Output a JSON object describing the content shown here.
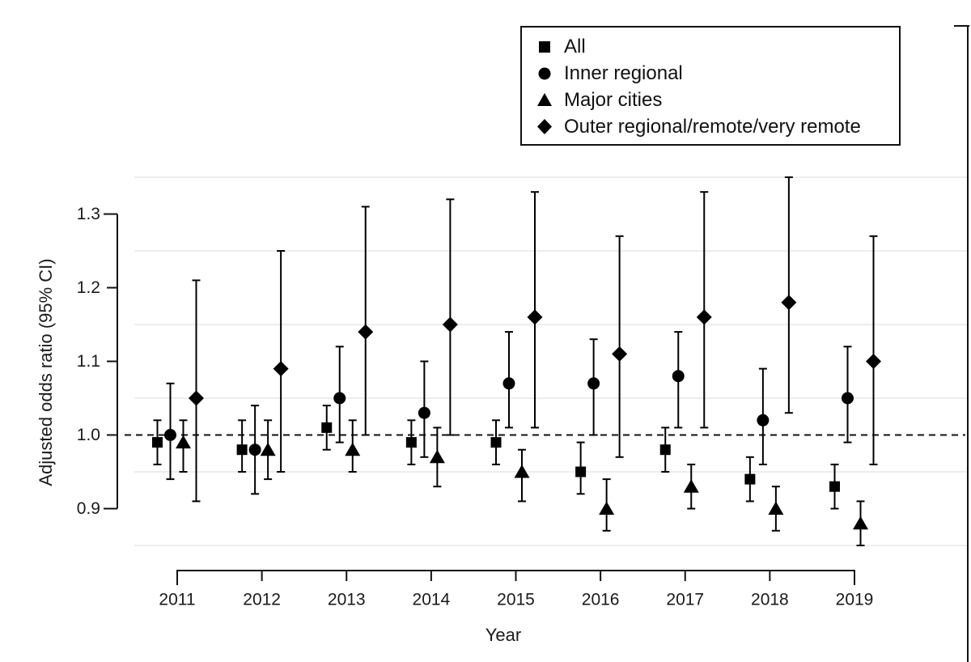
{
  "figure": {
    "y_axis_title": "Adjusted odds ratio (95% CI)",
    "x_axis_title": "Year"
  },
  "chart_data": {
    "type": "scatter",
    "subtype": "point-estimates-with-95CI-error-bars",
    "title": "",
    "xlabel": "Year",
    "ylabel": "Adjusted odds ratio (95% CI)",
    "categories": [
      "2011",
      "2012",
      "2013",
      "2014",
      "2015",
      "2016",
      "2017",
      "2018",
      "2019"
    ],
    "ylim": [
      0.9,
      1.3
    ],
    "ytick_labels": [
      "0.9",
      "1.0",
      "1.1",
      "1.2",
      "1.3"
    ],
    "yticks": [
      0.9,
      1.0,
      1.1,
      1.2,
      1.3
    ],
    "gridlines_y": [
      0.85,
      0.95,
      1.05,
      1.15,
      1.25,
      1.35
    ],
    "grid": "faint-horizontal",
    "reference_line_y": 1.0,
    "reference_line_style": "dashed",
    "legend_position": "top-right",
    "series": [
      {
        "name": "All",
        "marker": "square",
        "values": [
          0.99,
          0.98,
          1.01,
          0.99,
          0.99,
          0.95,
          0.98,
          0.94,
          0.93
        ],
        "ci_low": [
          0.96,
          0.95,
          0.98,
          0.96,
          0.96,
          0.92,
          0.95,
          0.91,
          0.9
        ],
        "ci_high": [
          1.02,
          1.02,
          1.04,
          1.02,
          1.02,
          0.99,
          1.01,
          0.97,
          0.96
        ]
      },
      {
        "name": "Inner regional",
        "marker": "circle",
        "values": [
          1.0,
          0.98,
          1.05,
          1.03,
          1.07,
          1.07,
          1.08,
          1.02,
          1.05
        ],
        "ci_low": [
          0.94,
          0.92,
          0.99,
          0.97,
          1.01,
          1.0,
          1.01,
          0.96,
          0.99
        ],
        "ci_high": [
          1.07,
          1.04,
          1.12,
          1.1,
          1.14,
          1.13,
          1.14,
          1.09,
          1.12
        ]
      },
      {
        "name": "Major cities",
        "marker": "triangle",
        "values": [
          0.99,
          0.98,
          0.98,
          0.97,
          0.95,
          0.9,
          0.93,
          0.9,
          0.88
        ],
        "ci_low": [
          0.95,
          0.94,
          0.95,
          0.93,
          0.91,
          0.87,
          0.9,
          0.87,
          0.85
        ],
        "ci_high": [
          1.02,
          1.02,
          1.02,
          1.01,
          0.98,
          0.94,
          0.96,
          0.93,
          0.91
        ]
      },
      {
        "name": "Outer regional/remote/very remote",
        "marker": "diamond",
        "values": [
          1.05,
          1.09,
          1.14,
          1.15,
          1.16,
          1.11,
          1.16,
          1.18,
          1.1
        ],
        "ci_low": [
          0.91,
          0.95,
          1.0,
          1.0,
          1.01,
          0.97,
          1.01,
          1.03,
          0.96
        ],
        "ci_high": [
          1.21,
          1.25,
          1.31,
          1.32,
          1.33,
          1.27,
          1.33,
          1.35,
          1.27
        ]
      }
    ],
    "colors": {
      "marker": "#000000",
      "axis": "#111111",
      "text": "#1a1a1a",
      "grid": "#ededed",
      "background": "#ffffff"
    }
  }
}
